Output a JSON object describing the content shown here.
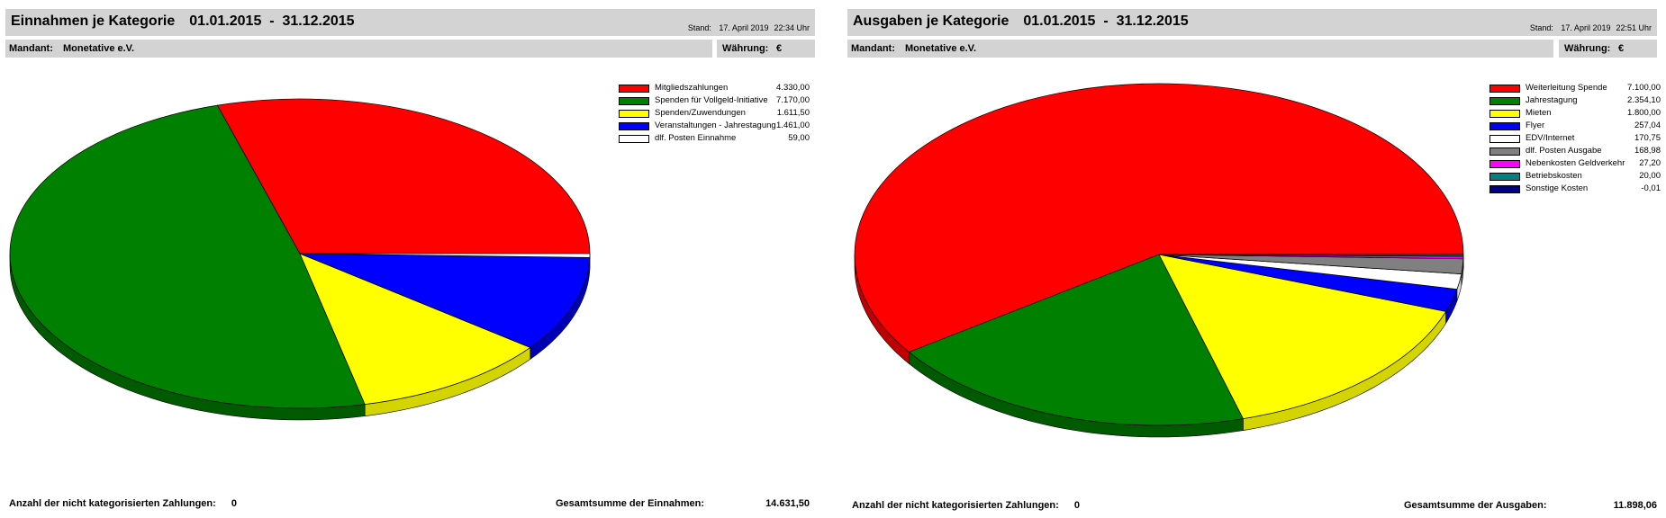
{
  "panels": [
    {
      "title": "Einnahmen je Kategorie",
      "period": "01.01.2015  -  31.12.2015",
      "stand_label": "Stand:",
      "stand_date": "17. April 2019",
      "stand_time": "22:34 Uhr",
      "mandant_label": "Mandant:",
      "mandant_value": "Monetative e.V.",
      "currency_label": "Währung:",
      "currency_value": "€",
      "footer_count_label": "Anzahl der nicht kategorisierten Zahlungen:",
      "footer_count_value": "0",
      "footer_total_label": "Gesamtsumme der Einnahmen:",
      "footer_total_value": "14.631,50"
    },
    {
      "title": "Ausgaben je Kategorie",
      "period": "01.01.2015  -  31.12.2015",
      "stand_label": "Stand:",
      "stand_date": "17. April 2019",
      "stand_time": "22:51 Uhr",
      "mandant_label": "Mandant:",
      "mandant_value": "Monetative e.V.",
      "currency_label": "Währung:",
      "currency_value": "€",
      "footer_count_label": "Anzahl der nicht kategorisierten Zahlungen:",
      "footer_count_value": "0",
      "footer_total_label": "Gesamtsumme der Ausgaben:",
      "footer_total_value": "11.898,06"
    }
  ],
  "chart_data": [
    {
      "type": "pie",
      "title": "Einnahmen je Kategorie",
      "slices": [
        {
          "label": "Mitgliedszahlungen",
          "value": 4330.0,
          "display": "4.330,00",
          "color": "#ff0000",
          "side": "#c00000"
        },
        {
          "label": "Spenden für Vollgeld-Initiative",
          "value": 7170.0,
          "display": "7.170,00",
          "color": "#008000",
          "side": "#005a00"
        },
        {
          "label": "Spenden/Zuwendungen",
          "value": 1611.5,
          "display": "1.611,50",
          "color": "#ffff00",
          "side": "#d4d400"
        },
        {
          "label": "Veranstaltungen - Jahrestagung",
          "value": 1461.0,
          "display": "1.461,00",
          "color": "#0000ff",
          "side": "#0000b4"
        },
        {
          "label": "dlf. Posten Einnahme",
          "value": 59.0,
          "display": "59,00",
          "color": "#ffffff",
          "side": "#d8d8d8"
        }
      ]
    },
    {
      "type": "pie",
      "title": "Ausgaben je Kategorie",
      "slices": [
        {
          "label": "Weiterleitung Spende",
          "value": 7100.0,
          "display": "7.100,00",
          "color": "#ff0000",
          "side": "#c00000"
        },
        {
          "label": "Jahrestagung",
          "value": 2354.1,
          "display": "2.354,10",
          "color": "#008000",
          "side": "#005a00"
        },
        {
          "label": "Mieten",
          "value": 1800.0,
          "display": "1.800,00",
          "color": "#ffff00",
          "side": "#d4d400"
        },
        {
          "label": "Flyer",
          "value": 257.04,
          "display": "257,04",
          "color": "#0000ff",
          "side": "#0000b4"
        },
        {
          "label": "EDV/Internet",
          "value": 170.75,
          "display": "170,75",
          "color": "#ffffff",
          "side": "#d8d8d8"
        },
        {
          "label": "dlf. Posten Ausgabe",
          "value": 168.98,
          "display": "168,98",
          "color": "#808080",
          "side": "#5c5c5c"
        },
        {
          "label": "Nebenkosten Geldverkehr",
          "value": 27.2,
          "display": "27,20",
          "color": "#ff00ff",
          "side": "#c000c0"
        },
        {
          "label": "Betriebskosten",
          "value": 20.0,
          "display": "20,00",
          "color": "#008080",
          "side": "#005a5a"
        },
        {
          "label": "Sonstige Kosten",
          "value": -0.01,
          "display": "-0,01",
          "color": "#000080",
          "side": "#00005a"
        }
      ]
    }
  ]
}
